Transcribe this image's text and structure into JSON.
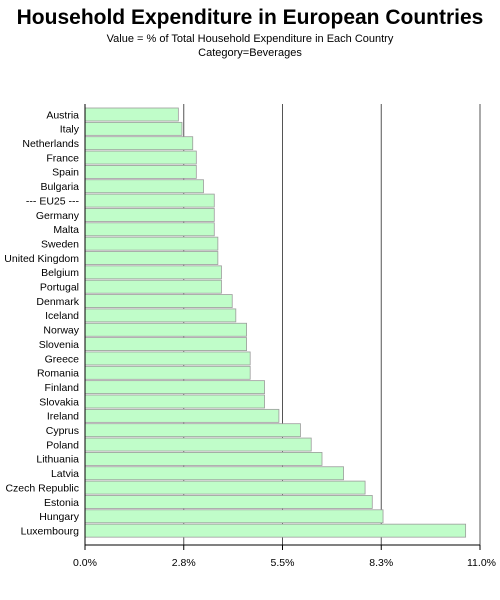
{
  "title": "Household Expenditure in European Countries",
  "subtitle": "Value = % of Total Household Expenditure in Each Country",
  "category_line": "Category=Beverages",
  "colors": {
    "bar_fill": "#c0fdc9",
    "bar_stroke": "#9c9c9c",
    "grid": "#555555",
    "axis": "#000000"
  },
  "chart_data": {
    "type": "bar",
    "orientation": "horizontal",
    "title": "Household Expenditure in European Countries",
    "subtitle": "Value = % of Total Household Expenditure in Each Country",
    "category": "Beverages",
    "categories": [
      "Austria",
      "Italy",
      "Netherlands",
      "France",
      "Spain",
      "Bulgaria",
      "--- EU25 ---",
      "Germany",
      "Malta",
      "Sweden",
      "United Kingdom",
      "Belgium",
      "Portugal",
      "Denmark",
      "Iceland",
      "Norway",
      "Slovenia",
      "Greece",
      "Romania",
      "Finland",
      "Slovakia",
      "Ireland",
      "Cyprus",
      "Poland",
      "Lithuania",
      "Latvia",
      "Czech Republic",
      "Estonia",
      "Hungary",
      "Luxembourg"
    ],
    "values": [
      2.6,
      2.7,
      3.0,
      3.1,
      3.1,
      3.3,
      3.6,
      3.6,
      3.6,
      3.7,
      3.7,
      3.8,
      3.8,
      4.1,
      4.2,
      4.5,
      4.5,
      4.6,
      4.6,
      5.0,
      5.0,
      5.4,
      6.0,
      6.3,
      6.6,
      7.2,
      7.8,
      8.0,
      8.3,
      10.6
    ],
    "xticks": [
      "0.0%",
      "2.8%",
      "5.5%",
      "8.3%",
      "11.0%"
    ],
    "tick_values": [
      0,
      2.75,
      5.5,
      8.25,
      11
    ],
    "xlim": [
      0,
      11
    ],
    "grid": "vertical"
  }
}
